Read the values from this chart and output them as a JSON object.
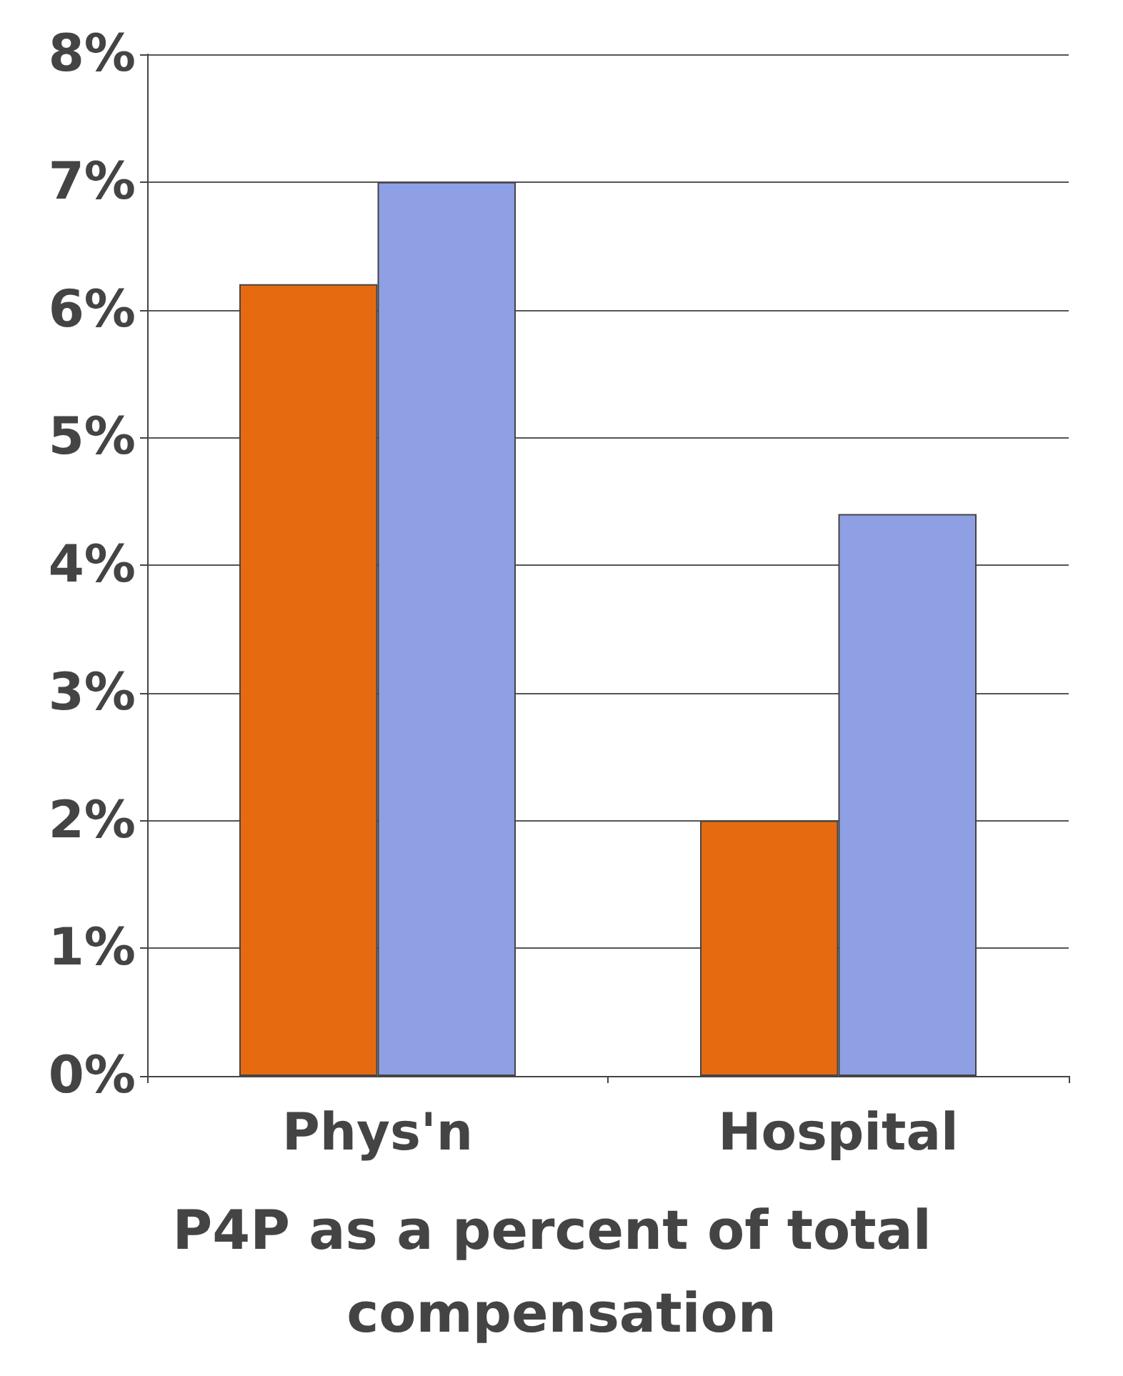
{
  "chart_data": {
    "type": "bar",
    "xlabel": "P4P as a percent of total compensation",
    "categories": [
      "Phys'n",
      "Hospital"
    ],
    "series": [
      {
        "color": "#e66a10",
        "values": [
          6.2,
          2.0
        ]
      },
      {
        "color": "#8f9fe3",
        "values": [
          7.0,
          4.4
        ]
      }
    ],
    "ylim": [
      0,
      8
    ],
    "yticks": [
      {
        "value": 0,
        "label": "0%"
      },
      {
        "value": 1,
        "label": "1%"
      },
      {
        "value": 2,
        "label": "2%"
      },
      {
        "value": 3,
        "label": "3%"
      },
      {
        "value": 4,
        "label": "4%"
      },
      {
        "value": 5,
        "label": "5%"
      },
      {
        "value": 6,
        "label": "6%"
      },
      {
        "value": 7,
        "label": "7%"
      },
      {
        "value": 8,
        "label": "8%"
      }
    ],
    "grid": "y"
  }
}
